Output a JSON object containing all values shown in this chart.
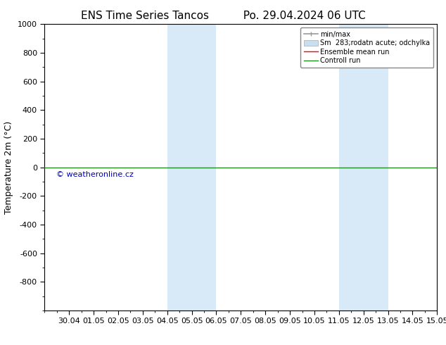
{
  "title_left": "ENS Time Series Tancos",
  "title_right": "Po. 29.04.2024 06 UTC",
  "ylabel": "Temperature 2m (°C)",
  "watermark": "© weatheronline.cz",
  "xtick_labels": [
    "30.04",
    "01.05",
    "02.05",
    "03.05",
    "04.05",
    "05.05",
    "06.05",
    "07.05",
    "08.05",
    "09.05",
    "10.05",
    "11.05",
    "12.05",
    "13.05",
    "14.05",
    "15.05"
  ],
  "ylim_top": -1000,
  "ylim_bottom": 1000,
  "ytick_values": [
    -800,
    -600,
    -400,
    -200,
    0,
    200,
    400,
    600,
    800,
    1000
  ],
  "ytick_labels": [
    "-800",
    "-600",
    "-400",
    "-200",
    "0",
    "200",
    "400",
    "600",
    "800",
    "1000"
  ],
  "shaded_regions": [
    {
      "x_start": 5.0,
      "x_end": 7.0
    },
    {
      "x_start": 12.0,
      "x_end": 14.0
    }
  ],
  "shade_color": "#d8eaf8",
  "hline_y": 0,
  "hline_color": "#228B22",
  "ensemble_mean_color": "#ff0000",
  "control_run_color": "#228B22",
  "minmax_color": "#999999",
  "spread_color": "#c8dff0",
  "background_color": "#ffffff",
  "legend_labels": [
    "min/max",
    "Sm  283;rodatn acute; odchylka",
    "Ensemble mean run",
    "Controll run"
  ],
  "title_fontsize": 11,
  "label_fontsize": 9,
  "tick_fontsize": 8,
  "watermark_color": "#0000bb",
  "xlim": [
    0,
    16
  ]
}
